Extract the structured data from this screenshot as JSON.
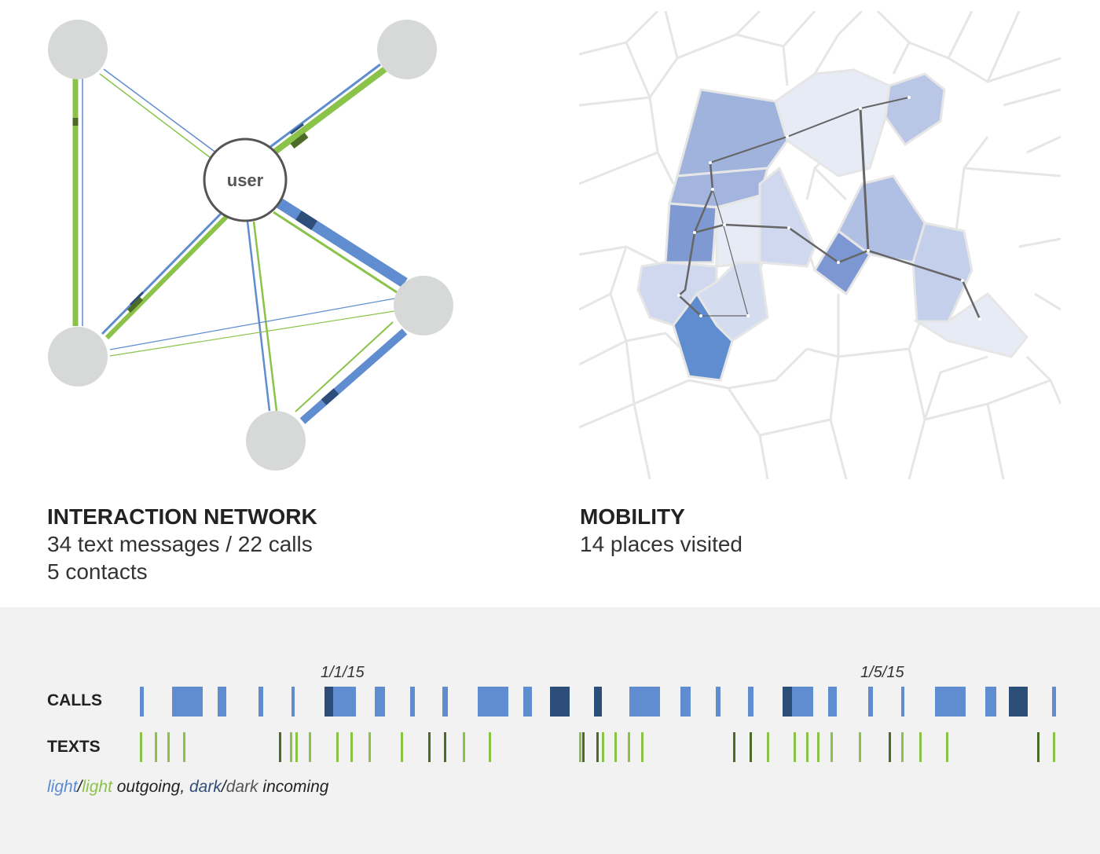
{
  "colors": {
    "light_blue": "#5f8dcf",
    "light_green": "#8bc34a",
    "dark_blue": "#2e4e7a",
    "dark_green": "#4b6b26",
    "node_gray": "#d7d9d9",
    "cell_border": "#e6e6e6",
    "path_gray": "#666666",
    "timeline_bg": "#f2f2f2"
  },
  "network": {
    "center_label": "user",
    "title": "INTERACTION NETWORK",
    "stats_line1": "34 text messages / 22 calls",
    "stats_line2": "5 contacts"
  },
  "mobility": {
    "title": "MOBILITY",
    "stats_line1": "14 places visited"
  },
  "timeline": {
    "calls_label": "CALLS",
    "texts_label": "TEXTS",
    "date_labels": [
      "1/1/15",
      "1/5/15"
    ],
    "legend": {
      "light_blue_word": "light",
      "slash1": "/",
      "light_green_word": "light",
      "outgoing_text": " outgoing, ",
      "dark_blue_word": "dark",
      "slash2": "/",
      "dark_green_word": "dark",
      "incoming_text": " incoming"
    }
  }
}
